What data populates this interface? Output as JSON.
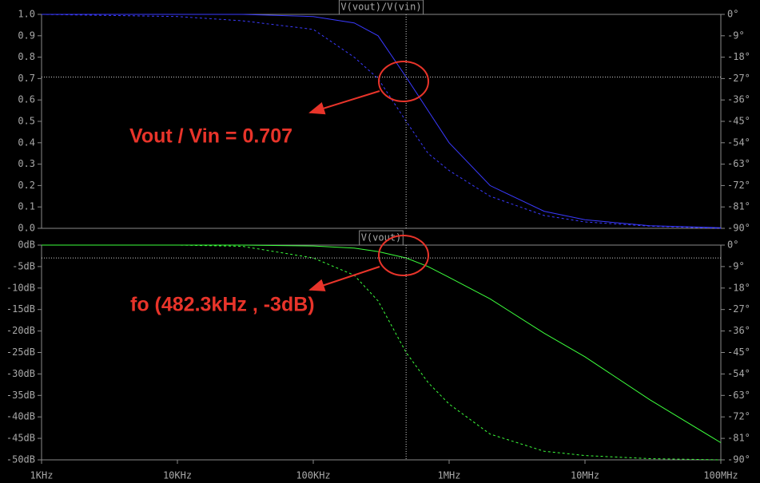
{
  "chart_data": [
    {
      "type": "line",
      "title": "V(vout)/V(vin)",
      "annotation": "Vout / Vin = 0.707",
      "x": [
        1000,
        10000,
        30000,
        100000,
        200000,
        300000,
        482300,
        700000,
        1000000,
        2000000,
        5000000,
        10000000,
        30000000,
        100000000
      ],
      "series": [
        {
          "name": "V(vout)/V(vin)",
          "color": "#3a3aff",
          "values": [
            1.0,
            1.0,
            1.0,
            0.99,
            0.96,
            0.9,
            0.707,
            0.55,
            0.4,
            0.2,
            0.08,
            0.04,
            0.012,
            0.003
          ]
        },
        {
          "name": "phase",
          "color": "#3a3aff",
          "axis": "y2",
          "dashed": true,
          "values": [
            0,
            -0.9,
            -2.7,
            -6.3,
            -18,
            -27,
            -45,
            -58.5,
            -65.7,
            -76.5,
            -84.6,
            -87.3,
            -89.1,
            -90
          ]
        }
      ],
      "xlim": [
        1000,
        100000000
      ],
      "xlog": true,
      "ylim": [
        0,
        1
      ],
      "yticks": [
        {
          "value": 1,
          "label": "1.0"
        },
        0.9,
        0.8,
        0.7,
        0.6,
        0.5,
        0.4,
        0.3,
        0.2,
        0.1,
        {
          "value": 0,
          "label": "0.0"
        }
      ],
      "y2lim": [
        -90,
        0
      ],
      "y2ticks": [
        {
          "value": 0,
          "label": "0°"
        },
        {
          "value": -9,
          "label": "-9°"
        },
        {
          "value": -18,
          "label": "-18°"
        },
        {
          "value": -27,
          "label": "-27°"
        },
        {
          "value": -36,
          "label": "-36°"
        },
        {
          "value": -45,
          "label": "-45°"
        },
        {
          "value": -54,
          "label": "-54°"
        },
        {
          "value": -63,
          "label": "-63°"
        },
        {
          "value": -72,
          "label": "-72°"
        },
        {
          "value": -81,
          "label": "-81°"
        },
        {
          "value": -90,
          "label": "-90°"
        }
      ],
      "cursor": {
        "x": 482300,
        "y": 0.707
      }
    },
    {
      "type": "line",
      "title": "V(vout)",
      "annotation": "fo (482.3kHz , -3dB)",
      "x": [
        1000,
        10000,
        30000,
        100000,
        200000,
        300000,
        482300,
        700000,
        1000000,
        2000000,
        5000000,
        10000000,
        30000000,
        100000000
      ],
      "series": [
        {
          "name": "V(vout)",
          "color": "#3cff3c",
          "values": [
            0,
            0,
            0,
            -0.2,
            -0.7,
            -1.5,
            -3,
            -5,
            -7.5,
            -12.5,
            -20.5,
            -26,
            -36,
            -46
          ]
        },
        {
          "name": "phase",
          "color": "#3cff3c",
          "axis": "y2",
          "dashed": true,
          "values": [
            0,
            0,
            -0.5,
            -5.4,
            -12.6,
            -23.4,
            -45,
            -57.6,
            -66.6,
            -79.2,
            -86.4,
            -88.2,
            -89.5,
            -90
          ]
        }
      ],
      "xlim": [
        1000,
        100000000
      ],
      "xlog": true,
      "xticks": [
        {
          "value": 1000,
          "label": "1KHz"
        },
        {
          "value": 10000,
          "label": "10KHz"
        },
        {
          "value": 100000,
          "label": "100KHz"
        },
        {
          "value": 1000000,
          "label": "1MHz"
        },
        {
          "value": 10000000,
          "label": "10MHz"
        },
        {
          "value": 100000000,
          "label": "100MHz"
        }
      ],
      "ylim": [
        -50,
        0
      ],
      "yticks": [
        {
          "value": 0,
          "label": "0dB"
        },
        {
          "value": -5,
          "label": "-5dB"
        },
        {
          "value": -10,
          "label": "-10dB"
        },
        {
          "value": -15,
          "label": "-15dB"
        },
        {
          "value": -20,
          "label": "-20dB"
        },
        {
          "value": -25,
          "label": "-25dB"
        },
        {
          "value": -30,
          "label": "-30dB"
        },
        {
          "value": -35,
          "label": "-35dB"
        },
        {
          "value": -40,
          "label": "-40dB"
        },
        {
          "value": -45,
          "label": "-45dB"
        },
        {
          "value": -50,
          "label": "-50dB"
        }
      ],
      "y2lim": [
        -90,
        0
      ],
      "y2ticks": [
        {
          "value": 0,
          "label": "0°"
        },
        {
          "value": -9,
          "label": "-9°"
        },
        {
          "value": -18,
          "label": "-18°"
        },
        {
          "value": -27,
          "label": "-27°"
        },
        {
          "value": -36,
          "label": "-36°"
        },
        {
          "value": -45,
          "label": "-45°"
        },
        {
          "value": -54,
          "label": "-54°"
        },
        {
          "value": -63,
          "label": "-63°"
        },
        {
          "value": -72,
          "label": "-72°"
        },
        {
          "value": -81,
          "label": "-81°"
        },
        {
          "value": -90,
          "label": "-90°"
        }
      ],
      "cursor": {
        "x": 482300,
        "y": -3
      }
    }
  ]
}
